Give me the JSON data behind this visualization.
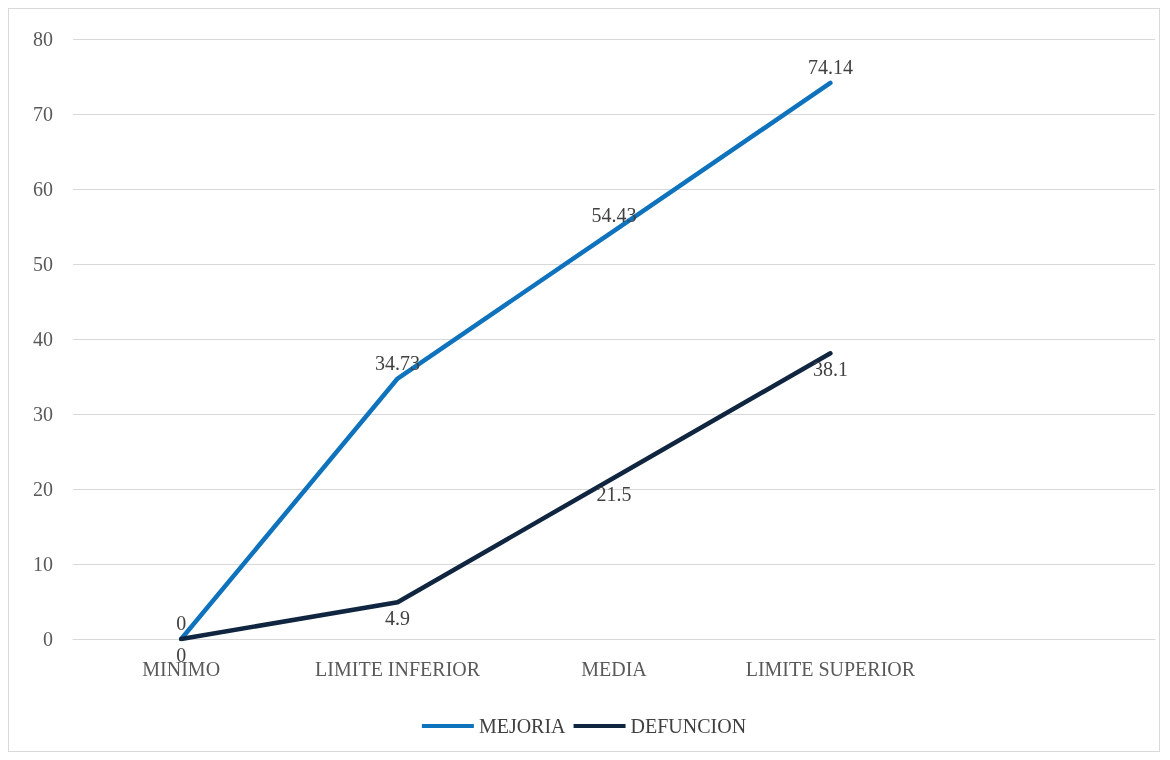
{
  "chart_data": {
    "type": "line",
    "categories": [
      "MINIMO",
      "LIMITE INFERIOR",
      "MEDIA",
      "LIMITE SUPERIOR",
      null
    ],
    "series": [
      {
        "name": "MEJORIA",
        "color": "#0f72bd",
        "values": [
          0,
          34.73,
          54.43,
          74.14,
          null
        ]
      },
      {
        "name": "DEFUNCION",
        "color": "#102640",
        "values": [
          0,
          4.9,
          21.5,
          38.1,
          null
        ]
      }
    ],
    "ylim": [
      0,
      80
    ],
    "yticks": [
      0,
      10,
      20,
      30,
      40,
      50,
      60,
      70,
      80
    ],
    "grid": "y",
    "legend": "bottom",
    "marker": "none",
    "line_style": "solid",
    "data_labels": true
  }
}
